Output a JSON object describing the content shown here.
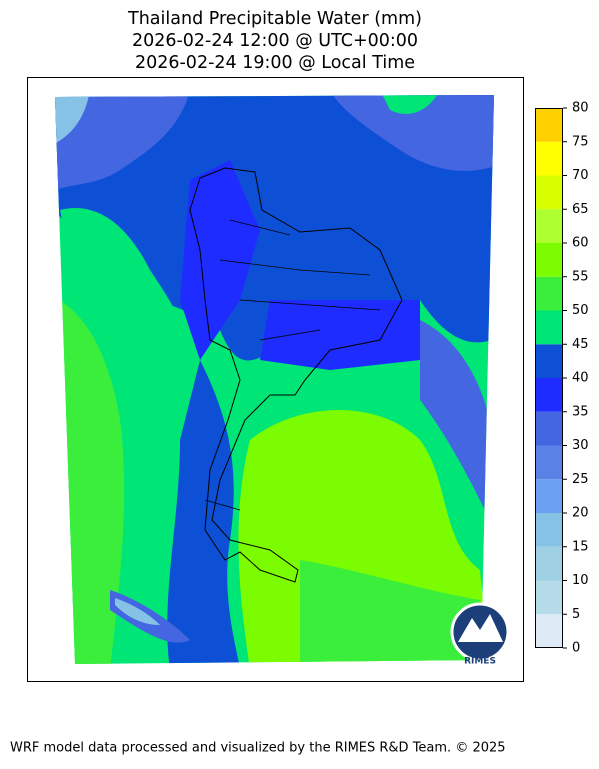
{
  "title": [
    "Thailand Precipitable Water (mm)",
    "2026-02-24 12:00 @ UTC+00:00",
    "2026-02-24 19:00 @ Local Time"
  ],
  "colorbar": {
    "ticks": [
      0,
      5,
      10,
      15,
      20,
      25,
      30,
      35,
      40,
      45,
      50,
      55,
      60,
      65,
      70,
      75,
      80
    ],
    "colors": [
      "#deebf7",
      "#b5dbe9",
      "#9fcfe3",
      "#86c1e6",
      "#6b9ff0",
      "#5a82e6",
      "#4466e0",
      "#1e2cff",
      "#0d50d6",
      "#00e676",
      "#3cee3c",
      "#7cfc00",
      "#adff2f",
      "#d8ff00",
      "#ffff00",
      "#ffd000"
    ]
  },
  "logo_text": "RIMES",
  "footer": "WRF model data processed and visualized by the RIMES R&D Team. © 2025"
}
